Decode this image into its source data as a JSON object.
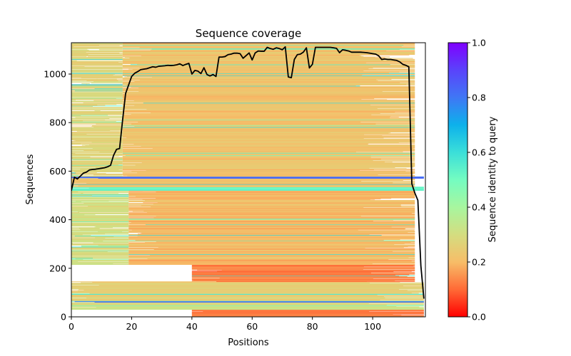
{
  "chart_data": {
    "type": "heatmap",
    "title": "Sequence coverage",
    "xlabel": "Positions",
    "ylabel": "Sequences",
    "xlim": [
      0,
      117.5
    ],
    "ylim": [
      0,
      1129
    ],
    "xticks": [
      0,
      20,
      40,
      60,
      80,
      100
    ],
    "yticks": [
      0,
      200,
      400,
      600,
      800,
      1000
    ],
    "grid": false,
    "colormap": "rainbow",
    "colorbar": {
      "label": "Sequence identity to query",
      "range": [
        0,
        1
      ],
      "ticks": [
        "0.0",
        "0.2",
        "0.4",
        "0.6",
        "0.8",
        "1.0"
      ],
      "stops": [
        "#ff0000",
        "#ff6a36",
        "#f7bd68",
        "#d4dd80",
        "#a7f69f",
        "#74fcc1",
        "#3bdfd9",
        "#0db1eb",
        "#3f77f5",
        "#5a43fb",
        "#7f00ff"
      ]
    },
    "coverage_line": {
      "name": "coverage",
      "color": "#000000",
      "x": [
        0,
        1,
        2,
        3,
        4,
        5,
        6,
        7,
        8,
        9,
        10,
        11,
        12,
        13,
        14,
        15,
        16,
        17,
        18,
        19,
        20,
        21,
        22,
        23,
        24,
        25,
        26,
        27,
        28,
        29,
        30,
        31,
        32,
        33,
        34,
        35,
        36,
        37,
        38,
        39,
        40,
        41,
        42,
        43,
        44,
        45,
        46,
        47,
        48,
        49,
        50,
        51,
        52,
        53,
        54,
        55,
        56,
        57,
        58,
        59,
        60,
        61,
        62,
        63,
        64,
        65,
        66,
        67,
        68,
        69,
        70,
        71,
        72,
        73,
        74,
        75,
        76,
        77,
        78,
        79,
        80,
        81,
        82,
        83,
        84,
        85,
        86,
        87,
        88,
        89,
        90,
        91,
        92,
        93,
        94,
        95,
        96,
        97,
        98,
        99,
        100,
        101,
        102,
        103,
        104,
        105,
        106,
        107,
        108,
        109,
        110,
        111,
        112,
        113,
        114,
        115,
        116,
        117
      ],
      "y": [
        520,
        575,
        568,
        580,
        592,
        596,
        605,
        607,
        608,
        610,
        612,
        614,
        618,
        624,
        665,
        690,
        693,
        810,
        920,
        955,
        990,
        1003,
        1010,
        1018,
        1020,
        1022,
        1026,
        1030,
        1028,
        1032,
        1033,
        1034,
        1036,
        1035,
        1036,
        1038,
        1042,
        1035,
        1040,
        1044,
        1000,
        1015,
        1012,
        1002,
        1026,
        998,
        992,
        998,
        990,
        1070,
        1070,
        1072,
        1080,
        1082,
        1086,
        1086,
        1084,
        1065,
        1076,
        1087,
        1058,
        1087,
        1095,
        1094,
        1094,
        1110,
        1105,
        1102,
        1108,
        1105,
        1100,
        1112,
        988,
        985,
        1060,
        1080,
        1082,
        1090,
        1108,
        1025,
        1040,
        1110,
        1110,
        1110,
        1110,
        1110,
        1110,
        1108,
        1106,
        1088,
        1100,
        1098,
        1095,
        1090,
        1090,
        1090,
        1090,
        1089,
        1088,
        1086,
        1084,
        1082,
        1075,
        1060,
        1062,
        1060,
        1060,
        1058,
        1056,
        1050,
        1040,
        1036,
        1030,
        548,
        510,
        480,
        210,
        75
      ]
    },
    "rows_summary": {
      "total_sequences": 1129,
      "dominant_identity": 0.22,
      "bands": [
        {
          "from": 0,
          "to": 30,
          "x_start": 40,
          "x_end": 117,
          "identity": 0.12
        },
        {
          "from": 30,
          "to": 60,
          "x_start": 0,
          "x_end": 117,
          "identity": 0.3
        },
        {
          "from": 60,
          "to": 66,
          "x_start": 0,
          "x_end": 117,
          "identity": 0.85
        },
        {
          "from": 66,
          "to": 145,
          "x_start": 0,
          "x_end": 117,
          "identity": 0.25
        },
        {
          "from": 145,
          "to": 215,
          "x_start": 40,
          "x_end": 114,
          "identity": 0.12
        },
        {
          "from": 215,
          "to": 520,
          "x_start": 19,
          "x_end": 114,
          "identity": 0.2
        },
        {
          "from": 215,
          "to": 520,
          "x_start": 0,
          "x_end": 19,
          "identity": 0.3
        },
        {
          "from": 520,
          "to": 535,
          "x_start": 0,
          "x_end": 117,
          "identity": 0.5
        },
        {
          "from": 535,
          "to": 570,
          "x_start": 0,
          "x_end": 114,
          "identity": 0.22
        },
        {
          "from": 570,
          "to": 578,
          "x_start": 0,
          "x_end": 117,
          "identity": 0.8
        },
        {
          "from": 578,
          "to": 1129,
          "x_start": 17,
          "x_end": 114,
          "identity": 0.22
        },
        {
          "from": 578,
          "to": 1129,
          "x_start": 0,
          "x_end": 17,
          "identity": 0.27
        }
      ]
    }
  }
}
